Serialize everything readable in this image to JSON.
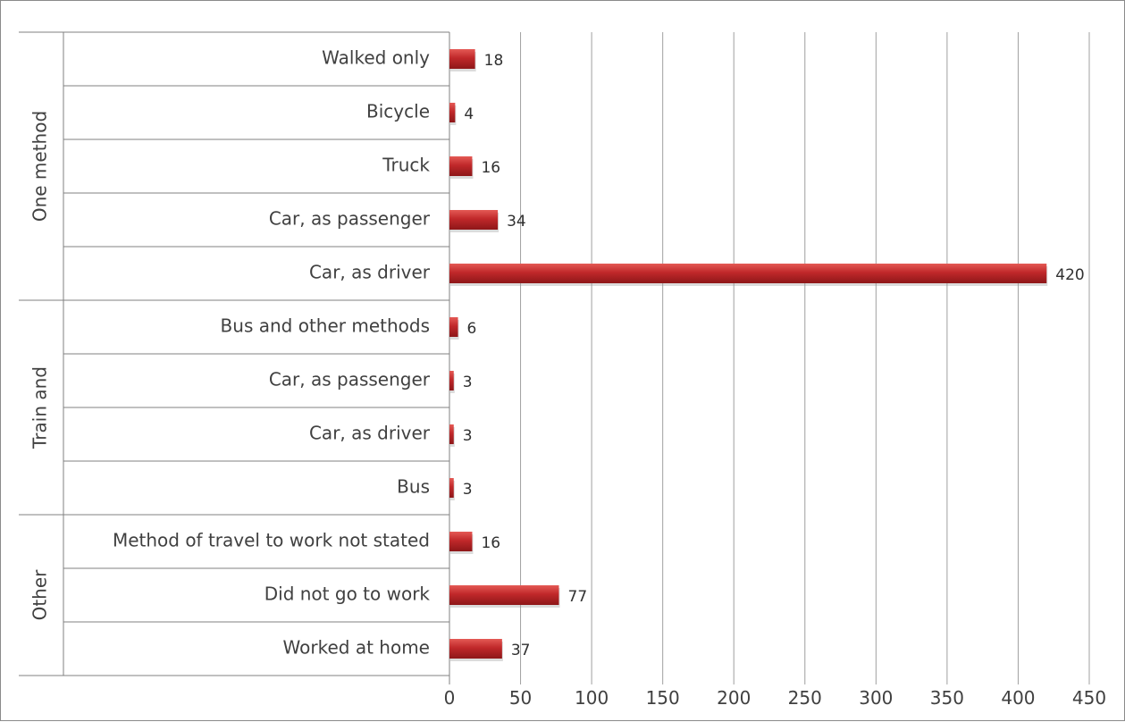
{
  "chart_data": {
    "type": "bar",
    "orientation": "horizontal",
    "title": "",
    "xlabel": "",
    "ylabel": "",
    "xlim": [
      0,
      450
    ],
    "x_ticks": [
      "0",
      "50",
      "100",
      "150",
      "200",
      "250",
      "300",
      "350",
      "400",
      "450"
    ],
    "grid": true,
    "bar_color": "#c0282a",
    "groups": [
      {
        "name": "One method",
        "categories": [
          "Walked only",
          "Bicycle",
          "Truck",
          "Car, as passenger",
          "Car, as driver"
        ],
        "values": [
          18,
          4,
          16,
          34,
          420
        ]
      },
      {
        "name": "Train and",
        "categories": [
          "Bus and other methods",
          "Car, as passenger",
          "Car, as driver",
          "Bus"
        ],
        "values": [
          6,
          3,
          3,
          3
        ]
      },
      {
        "name": "Other",
        "categories": [
          "Method of travel to work not stated",
          "Did not go to work",
          "Worked at home"
        ],
        "values": [
          16,
          77,
          37
        ]
      }
    ]
  }
}
